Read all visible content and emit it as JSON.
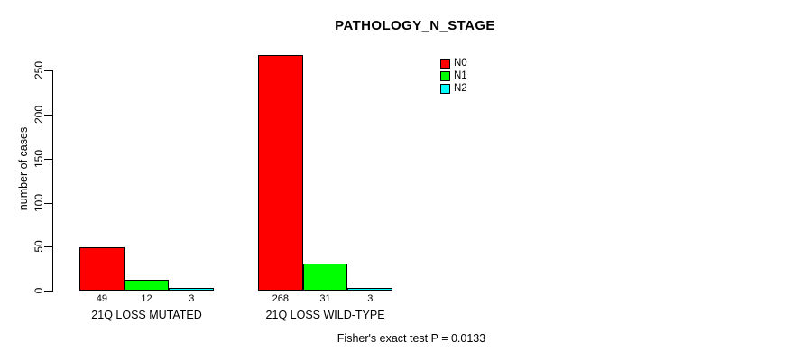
{
  "title": "PATHOLOGY_N_STAGE",
  "chart_data": {
    "type": "bar",
    "title": "PATHOLOGY_N_STAGE",
    "xlabel": "",
    "ylabel": "number of cases",
    "categories": [
      "21Q LOSS MUTATED",
      "21Q LOSS WILD-TYPE"
    ],
    "series": [
      {
        "name": "N0",
        "color": "#FF0000",
        "values": [
          49,
          268
        ]
      },
      {
        "name": "N1",
        "color": "#00FF00",
        "values": [
          12,
          31
        ]
      },
      {
        "name": "N2",
        "color": "#00FFFF",
        "values": [
          3,
          3
        ]
      }
    ],
    "bar_value_labels": [
      [
        "49",
        "12",
        "3"
      ],
      [
        "268",
        "31",
        "3"
      ]
    ],
    "yticks": [
      0,
      50,
      100,
      150,
      200,
      250
    ],
    "ylim": [
      0,
      270
    ],
    "grid": false,
    "legend_position": "top-right",
    "annotation": "Fisher's exact test P = 0.0133"
  }
}
